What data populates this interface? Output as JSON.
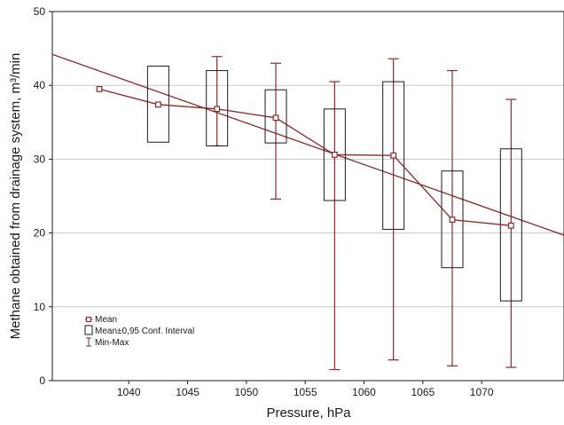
{
  "chart_data": {
    "type": "box",
    "xlabel": "Pressure, hPa",
    "ylabel": "Methane obtained from drainage system, m³/min",
    "xlim": [
      1033.5,
      1077.0
    ],
    "ylim": [
      0,
      50
    ],
    "x_ticks": [
      1040,
      1045,
      1050,
      1055,
      1060,
      1065,
      1070
    ],
    "x_tick_labels": [
      "1040",
      "1045",
      "1050",
      "1055",
      "1060",
      "1065",
      "1070"
    ],
    "y_ticks": [
      0,
      10,
      20,
      30,
      40,
      50
    ],
    "y_tick_labels": [
      "0",
      "10",
      "20",
      "30",
      "40",
      "50"
    ],
    "grid": "horizontal",
    "groups": [
      {
        "x": 1037.5,
        "mean": 39.5,
        "ci_low": null,
        "ci_high": null,
        "min": null,
        "max": null
      },
      {
        "x": 1042.5,
        "mean": 37.4,
        "ci_low": 32.3,
        "ci_high": 42.6,
        "min": null,
        "max": null
      },
      {
        "x": 1047.5,
        "mean": 36.8,
        "ci_low": 31.8,
        "ci_high": 42.0,
        "min": 31.8,
        "max": 43.9
      },
      {
        "x": 1052.5,
        "mean": 35.6,
        "ci_low": 32.2,
        "ci_high": 39.4,
        "min": 24.6,
        "max": 43.0
      },
      {
        "x": 1057.5,
        "mean": 30.6,
        "ci_low": 24.4,
        "ci_high": 36.8,
        "min": 1.5,
        "max": 40.5
      },
      {
        "x": 1062.5,
        "mean": 30.5,
        "ci_low": 20.5,
        "ci_high": 40.5,
        "min": 2.8,
        "max": 43.6
      },
      {
        "x": 1067.5,
        "mean": 21.8,
        "ci_low": 15.3,
        "ci_high": 28.4,
        "min": 2.0,
        "max": 42.0
      },
      {
        "x": 1072.5,
        "mean": 21.0,
        "ci_low": 10.8,
        "ci_high": 31.4,
        "min": 1.8,
        "max": 38.1
      }
    ],
    "trend_line": {
      "x": [
        1033.5,
        1077.0
      ],
      "y": [
        44.2,
        19.7
      ]
    },
    "legend": {
      "position": "bottom-left",
      "entries": [
        "Mean",
        "Mean±0,95 Conf. Interval",
        "Min-Max"
      ]
    },
    "colors": {
      "series": "#8b2a2a",
      "box": "#1a1a1a",
      "grid": "#c8c8c8",
      "axis": "#1a1a1a"
    }
  }
}
